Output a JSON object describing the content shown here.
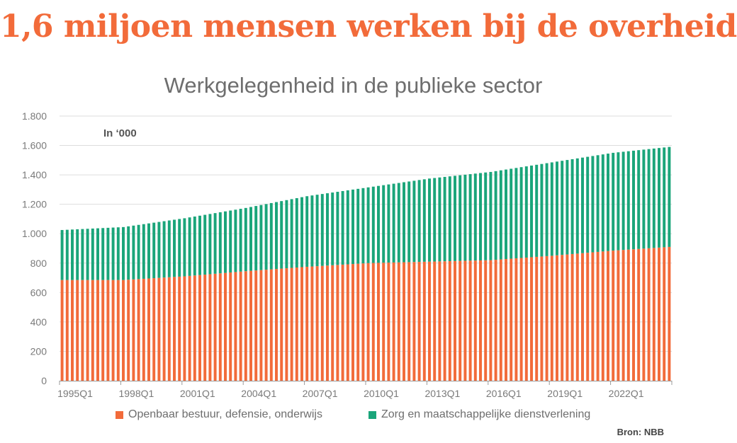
{
  "headline": "1,6 miljoen mensen werken bij de overheid",
  "subtitle": "Werkgelegenheid in de publieke sector",
  "unit_label": "In ‘000",
  "source": "Bron: NBB",
  "colors": {
    "public_admin": "#f26b3a",
    "care": "#1aa57a",
    "grid": "#dddddd",
    "axis": "#9a9a9a"
  },
  "legend": [
    {
      "label": "Openbaar bestuur, defensie, onderwijs",
      "color": "#f26b3a"
    },
    {
      "label": "Zorg en maatschappelijke dienstverlening",
      "color": "#1aa57a"
    }
  ],
  "chart_data": {
    "type": "bar",
    "stacked": true,
    "title": "Werkgelegenheid in de publieke sector",
    "unit": "In ‘000",
    "x_start": "1995Q1",
    "x_end": "2024Q4",
    "x_tick_labels": [
      "1995Q1",
      "1998Q1",
      "2001Q1",
      "2004Q1",
      "2007Q1",
      "2010Q1",
      "2013Q1",
      "2016Q1",
      "2019Q1",
      "2022Q1"
    ],
    "y_ticks": [
      0,
      200,
      400,
      600,
      800,
      1000,
      1200,
      1400,
      1600,
      1800
    ],
    "y_tick_labels": [
      "0",
      "200",
      "400",
      "600",
      "800",
      "1.000",
      "1.200",
      "1.400",
      "1.600",
      "1.800"
    ],
    "ylim": [
      0,
      1800
    ],
    "grid": true,
    "legend_position": "bottom",
    "series": [
      {
        "name": "Openbaar bestuur, defensie, onderwijs",
        "anchors": [
          [
            "1995Q1",
            685
          ],
          [
            "1998Q1",
            685
          ],
          [
            "2001Q1",
            710
          ],
          [
            "2004Q1",
            745
          ],
          [
            "2007Q1",
            775
          ],
          [
            "2010Q1",
            800
          ],
          [
            "2013Q1",
            810
          ],
          [
            "2016Q1",
            820
          ],
          [
            "2019Q1",
            850
          ],
          [
            "2022Q1",
            885
          ],
          [
            "2024Q4",
            910
          ]
        ]
      },
      {
        "name": "Zorg en maatschappelijke dienstverlening",
        "anchors": [
          [
            "1995Q1",
            340
          ],
          [
            "1998Q1",
            360
          ],
          [
            "2001Q1",
            395
          ],
          [
            "2004Q1",
            430
          ],
          [
            "2007Q1",
            480
          ],
          [
            "2010Q1",
            515
          ],
          [
            "2013Q1",
            565
          ],
          [
            "2016Q1",
            600
          ],
          [
            "2019Q1",
            635
          ],
          [
            "2022Q1",
            665
          ],
          [
            "2024Q4",
            680
          ]
        ]
      }
    ]
  }
}
